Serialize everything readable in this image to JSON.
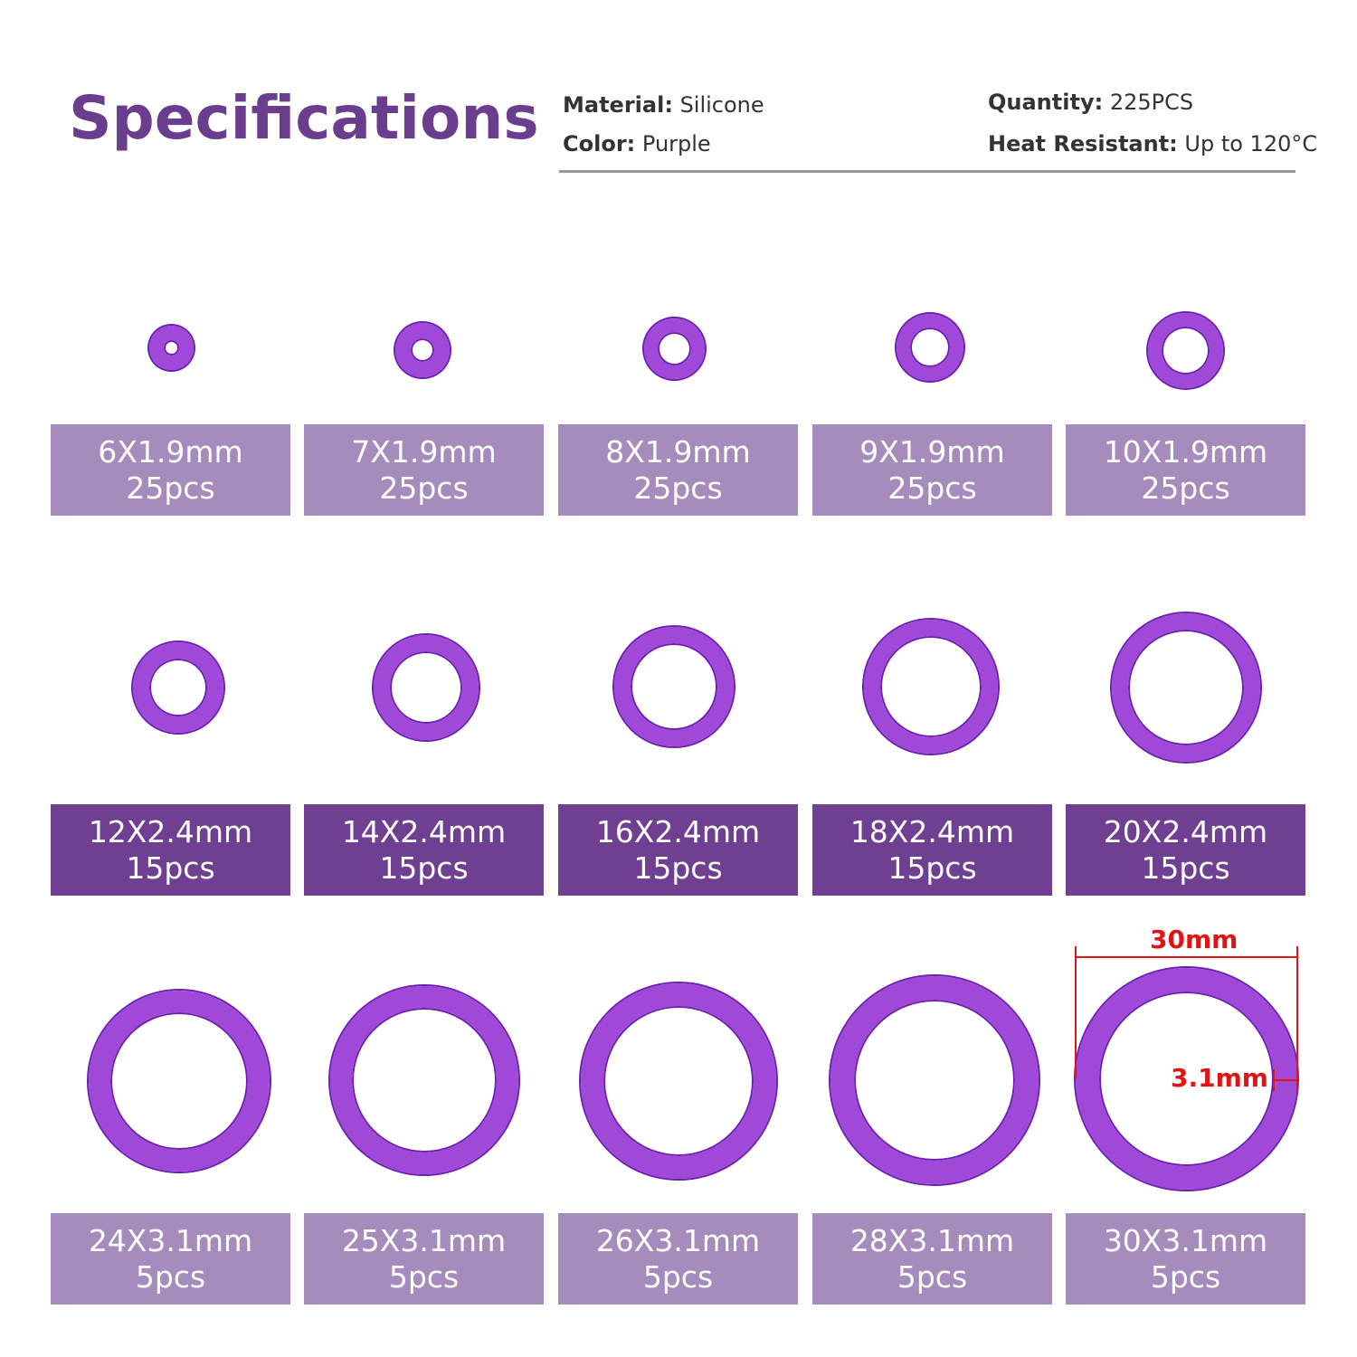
{
  "heading": "Specifications",
  "specs": {
    "material": {
      "key": "Material:",
      "value": "Silicone"
    },
    "color": {
      "key": "Color:",
      "value": "Purple"
    },
    "quantity": {
      "key": "Quantity:",
      "value": "225PCS"
    },
    "heat": {
      "key": "Heat Resistant:",
      "value": "Up to 120°C"
    }
  },
  "colors": {
    "ring_light": "#a048d8",
    "ring_dark": "#6c1fb3",
    "label_light": "#a68bbd",
    "label_dark": "#6f3f91",
    "dimension": "#e11414"
  },
  "rows": [
    {
      "items": [
        {
          "size": "6X1.9mm",
          "count": "25pcs"
        },
        {
          "size": "7X1.9mm",
          "count": "25pcs"
        },
        {
          "size": "8X1.9mm",
          "count": "25pcs"
        },
        {
          "size": "9X1.9mm",
          "count": "25pcs"
        },
        {
          "size": "10X1.9mm",
          "count": "25pcs"
        }
      ]
    },
    {
      "items": [
        {
          "size": "12X2.4mm",
          "count": "15pcs"
        },
        {
          "size": "14X2.4mm",
          "count": "15pcs"
        },
        {
          "size": "16X2.4mm",
          "count": "15pcs"
        },
        {
          "size": "18X2.4mm",
          "count": "15pcs"
        },
        {
          "size": "20X2.4mm",
          "count": "15pcs"
        }
      ]
    },
    {
      "items": [
        {
          "size": "24X3.1mm",
          "count": "5pcs"
        },
        {
          "size": "25X3.1mm",
          "count": "5pcs"
        },
        {
          "size": "26X3.1mm",
          "count": "5pcs"
        },
        {
          "size": "28X3.1mm",
          "count": "5pcs"
        },
        {
          "size": "30X3.1mm",
          "count": "5pcs"
        }
      ]
    }
  ],
  "dimensions": {
    "outer": "30mm",
    "thickness": "3.1mm"
  }
}
